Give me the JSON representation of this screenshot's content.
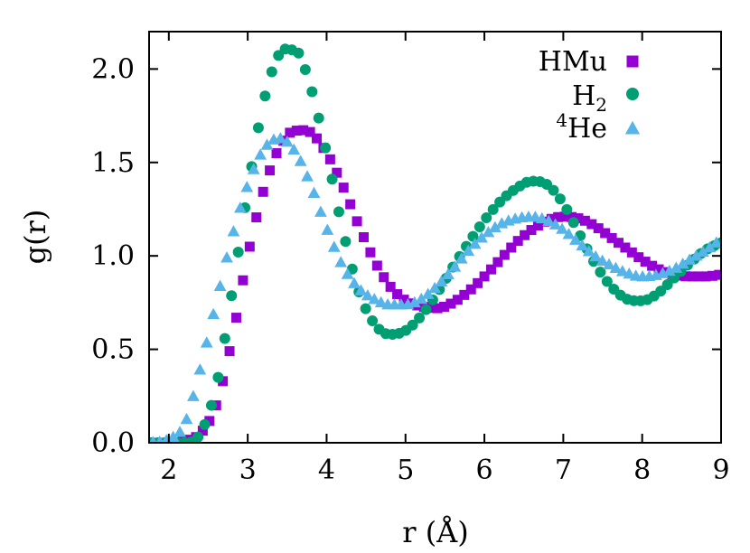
{
  "chart_data": {
    "type": "scatter",
    "title": "",
    "xlabel": "r (Å)",
    "ylabel": "g(r)",
    "xlim": [
      1.75,
      9.0
    ],
    "ylim": [
      0.0,
      2.2
    ],
    "x_ticks": [
      2,
      3,
      4,
      5,
      6,
      7,
      8,
      9
    ],
    "x_tick_labels": [
      "2",
      "3",
      "4",
      "5",
      "6",
      "7",
      "8",
      "9"
    ],
    "y_ticks": [
      0.0,
      0.5,
      1.0,
      1.5,
      2.0
    ],
    "y_tick_labels": [
      "0.0",
      "0.5",
      "1.0",
      "1.5",
      "2.0"
    ],
    "legend_position": "top-right",
    "series": [
      {
        "name": "HMu",
        "legend_label": "HMu",
        "marker": "square",
        "color": "#9400d3",
        "x": [
          1.75,
          2.0,
          2.2,
          2.4,
          2.6,
          2.8,
          3.0,
          3.2,
          3.4,
          3.6,
          3.8,
          4.0,
          4.2,
          4.4,
          4.6,
          4.8,
          5.0,
          5.2,
          5.4,
          5.6,
          5.8,
          6.0,
          6.2,
          6.4,
          6.6,
          6.8,
          7.0,
          7.2,
          7.4,
          7.6,
          7.8,
          8.0,
          8.2,
          8.4,
          8.6,
          8.8,
          9.0
        ],
        "y": [
          0.0,
          0.0,
          0.01,
          0.05,
          0.2,
          0.55,
          1.0,
          1.35,
          1.58,
          1.67,
          1.66,
          1.55,
          1.38,
          1.17,
          0.98,
          0.84,
          0.76,
          0.73,
          0.72,
          0.75,
          0.81,
          0.89,
          0.98,
          1.07,
          1.14,
          1.19,
          1.21,
          1.2,
          1.16,
          1.1,
          1.04,
          0.98,
          0.93,
          0.9,
          0.89,
          0.89,
          0.9
        ]
      },
      {
        "name": "H2",
        "legend_label": "H",
        "legend_subscript": "2",
        "marker": "circle",
        "color": "#009e73",
        "x": [
          1.75,
          2.0,
          2.2,
          2.4,
          2.6,
          2.8,
          3.0,
          3.2,
          3.4,
          3.6,
          3.8,
          4.0,
          4.2,
          4.4,
          4.6,
          4.8,
          5.0,
          5.2,
          5.4,
          5.6,
          5.8,
          6.0,
          6.2,
          6.4,
          6.6,
          6.8,
          7.0,
          7.2,
          7.4,
          7.6,
          7.8,
          8.0,
          8.2,
          8.4,
          8.6,
          8.8,
          9.0
        ],
        "y": [
          0.0,
          0.0,
          0.0,
          0.05,
          0.3,
          0.8,
          1.35,
          1.82,
          2.08,
          2.1,
          1.9,
          1.55,
          1.15,
          0.82,
          0.64,
          0.58,
          0.6,
          0.68,
          0.8,
          0.94,
          1.07,
          1.19,
          1.29,
          1.36,
          1.4,
          1.38,
          1.28,
          1.12,
          0.96,
          0.84,
          0.77,
          0.76,
          0.8,
          0.88,
          0.96,
          1.03,
          1.07
        ]
      },
      {
        "name": "4He",
        "legend_label": "He",
        "legend_superscript": "4",
        "marker": "triangle",
        "color": "#56b4e9",
        "x": [
          1.75,
          2.0,
          2.2,
          2.4,
          2.6,
          2.8,
          3.0,
          3.2,
          3.4,
          3.6,
          3.8,
          4.0,
          4.2,
          4.4,
          4.6,
          4.8,
          5.0,
          5.2,
          5.4,
          5.6,
          5.8,
          6.0,
          6.2,
          6.4,
          6.6,
          6.8,
          7.0,
          7.2,
          7.4,
          7.6,
          7.8,
          8.0,
          8.2,
          8.4,
          8.6,
          8.8,
          9.0
        ],
        "y": [
          0.0,
          0.02,
          0.1,
          0.4,
          0.75,
          1.1,
          1.38,
          1.57,
          1.63,
          1.56,
          1.38,
          1.15,
          0.95,
          0.83,
          0.77,
          0.74,
          0.74,
          0.77,
          0.84,
          0.93,
          1.03,
          1.11,
          1.17,
          1.2,
          1.21,
          1.19,
          1.14,
          1.07,
          1.0,
          0.95,
          0.91,
          0.89,
          0.9,
          0.93,
          0.98,
          1.03,
          1.09
        ]
      }
    ]
  }
}
